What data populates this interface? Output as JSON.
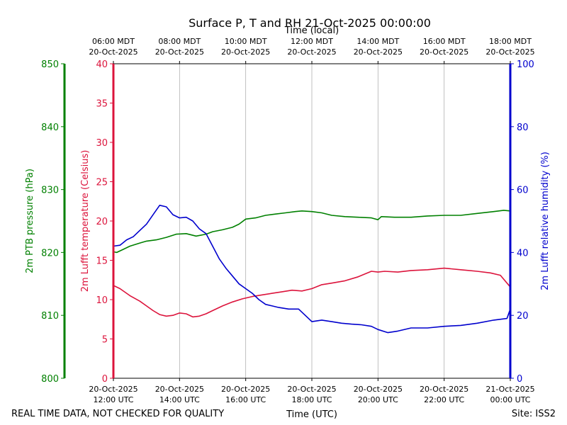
{
  "chart_data": {
    "type": "line",
    "title": "Surface P, T and RH 21-Oct-2025 00:00:00",
    "x_top_label": "Time (local)",
    "x_bottom_label": "Time (UTC)",
    "x_range_hours_utc": [
      12,
      24
    ],
    "top_ticks": [
      {
        "hour": 12,
        "line1": "06:00 MDT",
        "line2": "20-Oct-2025"
      },
      {
        "hour": 14,
        "line1": "08:00 MDT",
        "line2": "20-Oct-2025"
      },
      {
        "hour": 16,
        "line1": "10:00 MDT",
        "line2": "20-Oct-2025"
      },
      {
        "hour": 18,
        "line1": "12:00 MDT",
        "line2": "20-Oct-2025"
      },
      {
        "hour": 20,
        "line1": "14:00 MDT",
        "line2": "20-Oct-2025"
      },
      {
        "hour": 22,
        "line1": "16:00 MDT",
        "line2": "20-Oct-2025"
      },
      {
        "hour": 24,
        "line1": "18:00 MDT",
        "line2": "20-Oct-2025"
      }
    ],
    "bottom_ticks": [
      {
        "hour": 12,
        "line1": "20-Oct-2025",
        "line2": "12:00 UTC"
      },
      {
        "hour": 14,
        "line1": "20-Oct-2025",
        "line2": "14:00 UTC"
      },
      {
        "hour": 16,
        "line1": "20-Oct-2025",
        "line2": "16:00 UTC"
      },
      {
        "hour": 18,
        "line1": "20-Oct-2025",
        "line2": "18:00 UTC"
      },
      {
        "hour": 20,
        "line1": "20-Oct-2025",
        "line2": "20:00 UTC"
      },
      {
        "hour": 22,
        "line1": "20-Oct-2025",
        "line2": "22:00 UTC"
      },
      {
        "hour": 24,
        "line1": "21-Oct-2025",
        "line2": "00:00 UTC"
      }
    ],
    "axes": {
      "pressure": {
        "label": "2m PTB pressure (hPa)",
        "range": [
          800,
          850
        ],
        "ticks": [
          800,
          810,
          820,
          830,
          840,
          850
        ],
        "color": "#008000"
      },
      "temperature": {
        "label": "2m Lufft temperature (Celsius)",
        "range": [
          0,
          40
        ],
        "ticks": [
          0,
          5,
          10,
          15,
          20,
          25,
          30,
          35,
          40
        ],
        "color": "#dc143c"
      },
      "humidity": {
        "label": "2m Lufft relative humidity (%)",
        "range": [
          0,
          100
        ],
        "ticks": [
          0,
          20,
          40,
          60,
          80,
          100
        ],
        "color": "#0000cd"
      }
    },
    "grid": "vertical",
    "series": [
      {
        "axis": "pressure",
        "color": "#008000",
        "x": [
          12.0,
          12.1,
          12.3,
          12.5,
          12.8,
          13.0,
          13.3,
          13.6,
          13.9,
          14.2,
          14.5,
          14.8,
          15.0,
          15.3,
          15.6,
          15.8,
          16.0,
          16.3,
          16.6,
          16.9,
          17.2,
          17.5,
          17.7,
          18.0,
          18.3,
          18.6,
          19.0,
          19.4,
          19.8,
          20.0,
          20.1,
          20.5,
          21.0,
          21.5,
          22.0,
          22.5,
          23.0,
          23.5,
          23.8,
          24.0
        ],
        "y": [
          820.1,
          820.0,
          820.5,
          821.0,
          821.5,
          821.8,
          822.0,
          822.4,
          822.9,
          823.0,
          822.6,
          822.9,
          823.3,
          823.6,
          824.0,
          824.5,
          825.3,
          825.5,
          825.9,
          826.1,
          826.3,
          826.5,
          826.6,
          826.5,
          826.3,
          825.9,
          825.7,
          825.6,
          825.5,
          825.2,
          825.7,
          825.6,
          825.6,
          825.8,
          825.9,
          825.9,
          826.2,
          826.5,
          826.7,
          826.6
        ]
      },
      {
        "axis": "temperature",
        "color": "#dc143c",
        "x": [
          12.0,
          12.2,
          12.5,
          12.8,
          13.0,
          13.2,
          13.4,
          13.6,
          13.8,
          14.0,
          14.2,
          14.4,
          14.6,
          14.8,
          15.0,
          15.3,
          15.6,
          15.9,
          16.2,
          16.5,
          16.8,
          17.1,
          17.4,
          17.7,
          18.0,
          18.3,
          18.6,
          19.0,
          19.4,
          19.8,
          20.0,
          20.2,
          20.6,
          21.0,
          21.5,
          22.0,
          22.5,
          23.0,
          23.4,
          23.7,
          24.0
        ],
        "y": [
          11.8,
          11.4,
          10.5,
          9.8,
          9.2,
          8.6,
          8.1,
          7.9,
          8.0,
          8.3,
          8.2,
          7.8,
          7.9,
          8.2,
          8.6,
          9.2,
          9.7,
          10.1,
          10.4,
          10.6,
          10.8,
          11.0,
          11.2,
          11.1,
          11.4,
          11.9,
          12.1,
          12.4,
          12.9,
          13.6,
          13.5,
          13.6,
          13.5,
          13.7,
          13.8,
          14.0,
          13.8,
          13.6,
          13.4,
          13.1,
          11.6
        ]
      },
      {
        "axis": "humidity",
        "color": "#0000cd",
        "x": [
          12.0,
          12.2,
          12.4,
          12.6,
          12.8,
          13.0,
          13.2,
          13.4,
          13.6,
          13.8,
          14.0,
          14.2,
          14.4,
          14.6,
          14.8,
          15.0,
          15.2,
          15.4,
          15.6,
          15.8,
          16.0,
          16.2,
          16.4,
          16.6,
          16.8,
          17.0,
          17.3,
          17.6,
          17.9,
          18.0,
          18.3,
          18.6,
          18.9,
          19.2,
          19.5,
          19.8,
          20.0,
          20.3,
          20.6,
          21.0,
          21.5,
          22.0,
          22.5,
          23.0,
          23.5,
          23.9,
          24.0
        ],
        "y": [
          42.0,
          42.3,
          44.0,
          45.0,
          47.0,
          49.0,
          52.0,
          55.0,
          54.5,
          52.0,
          51.0,
          51.2,
          50.0,
          47.5,
          46.0,
          42.0,
          38.0,
          35.0,
          32.5,
          30.0,
          28.5,
          27.0,
          25.0,
          23.5,
          23.0,
          22.5,
          22.0,
          22.0,
          19.0,
          18.0,
          18.5,
          18.0,
          17.5,
          17.2,
          17.0,
          16.5,
          15.5,
          14.5,
          15.0,
          16.0,
          16.0,
          16.5,
          16.8,
          17.5,
          18.5,
          19.0,
          22.0
        ]
      }
    ]
  },
  "footer": {
    "left_note": "REAL TIME DATA, NOT CHECKED FOR QUALITY",
    "site": "Site: ISS2"
  }
}
